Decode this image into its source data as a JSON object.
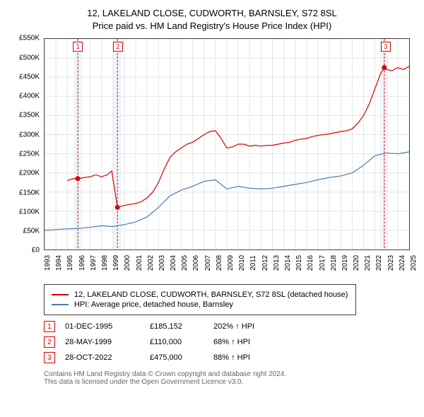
{
  "title": {
    "line1": "12, LAKELAND CLOSE, CUDWORTH, BARNSLEY, S72 8SL",
    "line2": "Price paid vs. HM Land Registry's House Price Index (HPI)"
  },
  "chart": {
    "type": "line",
    "ylim": [
      0,
      550000
    ],
    "ytick_step": 50000,
    "y_labels": [
      "£0",
      "£50K",
      "£100K",
      "£150K",
      "£200K",
      "£250K",
      "£300K",
      "£350K",
      "£400K",
      "£450K",
      "£500K",
      "£550K"
    ],
    "xlim": [
      1993,
      2025
    ],
    "x_labels": [
      "1993",
      "1994",
      "1995",
      "1996",
      "1997",
      "1998",
      "1999",
      "2000",
      "2001",
      "2002",
      "2003",
      "2004",
      "2005",
      "2006",
      "2007",
      "2008",
      "2009",
      "2010",
      "2011",
      "2012",
      "2013",
      "2014",
      "2015",
      "2016",
      "2017",
      "2018",
      "2019",
      "2020",
      "2021",
      "2022",
      "2023",
      "2024",
      "2025"
    ],
    "background_color": "#ffffff",
    "grid_color": "#e5e5e5",
    "border_color": "#444444",
    "series": [
      {
        "name": "property",
        "color": "#d90000",
        "line_width": 1.2,
        "data": [
          [
            1995.0,
            180000
          ],
          [
            1995.5,
            185000
          ],
          [
            1996,
            185000
          ],
          [
            1996.5,
            188000
          ],
          [
            1997,
            190000
          ],
          [
            1997.5,
            195000
          ],
          [
            1998,
            190000
          ],
          [
            1998.5,
            195000
          ],
          [
            1998.9,
            205000
          ],
          [
            1999.4,
            110000
          ],
          [
            2000,
            115000
          ],
          [
            2000.5,
            118000
          ],
          [
            2001,
            120000
          ],
          [
            2001.5,
            125000
          ],
          [
            2002,
            135000
          ],
          [
            2002.5,
            150000
          ],
          [
            2003,
            175000
          ],
          [
            2003.5,
            210000
          ],
          [
            2004,
            240000
          ],
          [
            2004.5,
            255000
          ],
          [
            2005,
            265000
          ],
          [
            2005.5,
            275000
          ],
          [
            2006,
            280000
          ],
          [
            2006.5,
            290000
          ],
          [
            2007,
            300000
          ],
          [
            2007.5,
            308000
          ],
          [
            2008,
            310000
          ],
          [
            2008.5,
            290000
          ],
          [
            2009,
            265000
          ],
          [
            2009.5,
            268000
          ],
          [
            2010,
            275000
          ],
          [
            2010.5,
            275000
          ],
          [
            2011,
            270000
          ],
          [
            2011.5,
            272000
          ],
          [
            2012,
            270000
          ],
          [
            2012.5,
            272000
          ],
          [
            2013,
            272000
          ],
          [
            2013.5,
            275000
          ],
          [
            2014,
            278000
          ],
          [
            2014.5,
            280000
          ],
          [
            2015,
            285000
          ],
          [
            2015.5,
            288000
          ],
          [
            2016,
            290000
          ],
          [
            2016.5,
            295000
          ],
          [
            2017,
            298000
          ],
          [
            2017.5,
            300000
          ],
          [
            2018,
            302000
          ],
          [
            2018.5,
            305000
          ],
          [
            2019,
            308000
          ],
          [
            2019.5,
            310000
          ],
          [
            2020,
            315000
          ],
          [
            2020.5,
            330000
          ],
          [
            2021,
            350000
          ],
          [
            2021.5,
            380000
          ],
          [
            2022,
            420000
          ],
          [
            2022.5,
            460000
          ],
          [
            2022.82,
            475000
          ],
          [
            2023,
            470000
          ],
          [
            2023.5,
            467000
          ],
          [
            2024,
            475000
          ],
          [
            2024.5,
            470000
          ],
          [
            2025,
            478000
          ]
        ]
      },
      {
        "name": "hpi",
        "color": "#4a7bb5",
        "line_width": 1.2,
        "data": [
          [
            1993,
            50000
          ],
          [
            1994,
            52000
          ],
          [
            1995,
            54000
          ],
          [
            1996,
            55000
          ],
          [
            1997,
            58000
          ],
          [
            1998,
            62000
          ],
          [
            1999,
            60000
          ],
          [
            2000,
            65000
          ],
          [
            2001,
            72000
          ],
          [
            2002,
            85000
          ],
          [
            2003,
            110000
          ],
          [
            2004,
            140000
          ],
          [
            2005,
            155000
          ],
          [
            2006,
            165000
          ],
          [
            2007,
            178000
          ],
          [
            2008,
            182000
          ],
          [
            2009,
            158000
          ],
          [
            2010,
            165000
          ],
          [
            2011,
            160000
          ],
          [
            2012,
            158000
          ],
          [
            2013,
            160000
          ],
          [
            2014,
            165000
          ],
          [
            2015,
            170000
          ],
          [
            2016,
            175000
          ],
          [
            2017,
            182000
          ],
          [
            2018,
            188000
          ],
          [
            2019,
            192000
          ],
          [
            2020,
            200000
          ],
          [
            2021,
            220000
          ],
          [
            2022,
            245000
          ],
          [
            2023,
            252000
          ],
          [
            2024,
            250000
          ],
          [
            2025,
            255000
          ]
        ]
      }
    ],
    "markers": [
      {
        "num": "1",
        "x": 1995.92,
        "y": 185152,
        "color": "#d90000",
        "dash": true,
        "band_color": "#e8eff8"
      },
      {
        "num": "2",
        "x": 1999.4,
        "y": 110000,
        "color": "#d90000",
        "dash": true,
        "band_color": "#e8eff8"
      },
      {
        "num": "3",
        "x": 2022.82,
        "y": 475000,
        "color": "#d90000",
        "dash": true,
        "band_color": "#e8eff8"
      }
    ]
  },
  "legend": {
    "items": [
      {
        "color": "#d90000",
        "label": "12, LAKELAND CLOSE, CUDWORTH, BARNSLEY, S72 8SL (detached house)"
      },
      {
        "color": "#4a7bb5",
        "label": "HPI: Average price, detached house, Barnsley"
      }
    ]
  },
  "marker_table": [
    {
      "num": "1",
      "color": "#d90000",
      "date": "01-DEC-1995",
      "price": "£185,152",
      "pct": "202% ↑ HPI"
    },
    {
      "num": "2",
      "color": "#d90000",
      "date": "28-MAY-1999",
      "price": "£110,000",
      "pct": "68% ↑ HPI"
    },
    {
      "num": "3",
      "color": "#d90000",
      "date": "28-OCT-2022",
      "price": "£475,000",
      "pct": "88% ↑ HPI"
    }
  ],
  "footer": {
    "line1": "Contains HM Land Registry data © Crown copyright and database right 2024.",
    "line2": "This data is licensed under the Open Government Licence v3.0."
  }
}
